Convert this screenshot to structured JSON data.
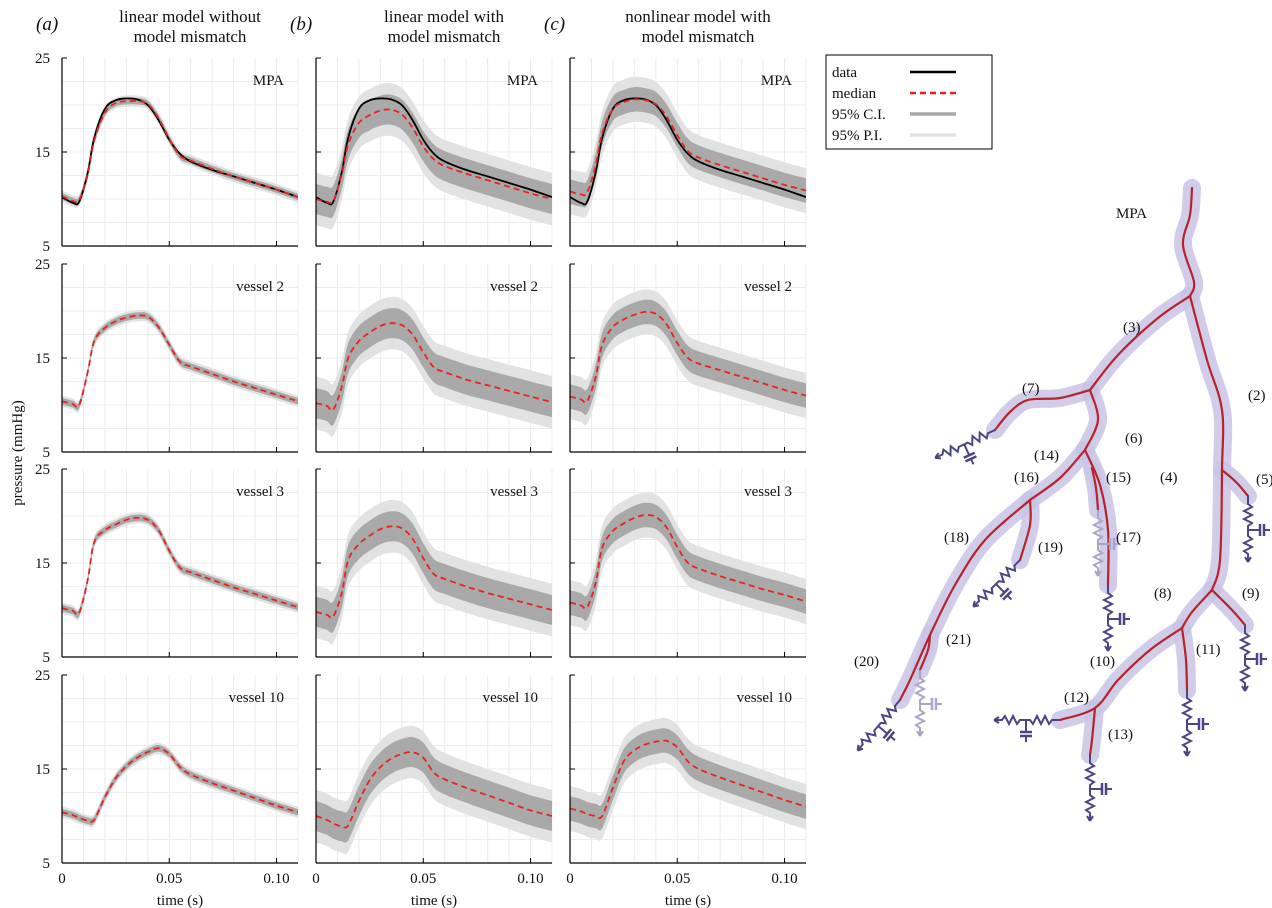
{
  "colors": {
    "data_line": "#000000",
    "median_line": "#e8231d",
    "ci_band": "#a9a9a9",
    "pi_band": "#e2e2e2",
    "vessel_centerline": "#b5232c",
    "vessel_tube": "#c9c4e4",
    "rcr_element": "#4a4585",
    "rcr_faded": "#a9a5c8"
  },
  "columns": [
    {
      "letter": "(a)",
      "title_line1": "linear model without",
      "title_line2": "model mismatch"
    },
    {
      "letter": "(b)",
      "title_line1": "linear model with",
      "title_line2": "model mismatch"
    },
    {
      "letter": "(c)",
      "title_line1": "nonlinear model with",
      "title_line2": "model mismatch"
    }
  ],
  "y_axis_label": "pressure (mmHg)",
  "x_axis_label": "time (s)",
  "legend": {
    "data": "data",
    "median": "median",
    "ci": "95% C.I.",
    "pi": "95% P.I."
  },
  "tree": {
    "root_label": "MPA",
    "vessel_labels": [
      "(2)",
      "(3)",
      "(4)",
      "(5)",
      "(6)",
      "(7)",
      "(8)",
      "(9)",
      "(10)",
      "(11)",
      "(12)",
      "(13)",
      "(14)",
      "(15)",
      "(16)",
      "(17)",
      "(18)",
      "(19)",
      "(20)",
      "(21)"
    ]
  },
  "chart_data": [
    {
      "type": "line",
      "x_label": "time (s)",
      "y_label": "pressure (mmHg)",
      "xlim": [
        0,
        0.11
      ],
      "ylim": [
        5,
        25
      ],
      "xticks": [
        "0",
        "0.05",
        "0.10"
      ],
      "yticks": [
        "5",
        "15",
        "25"
      ],
      "grid": true,
      "legend": "right",
      "x": [
        0,
        0.005,
        0.008,
        0.012,
        0.015,
        0.02,
        0.025,
        0.03,
        0.035,
        0.04,
        0.045,
        0.05,
        0.055,
        0.06,
        0.07,
        0.08,
        0.09,
        0.1,
        0.11
      ],
      "rows": [
        {
          "vessel": "MPA",
          "series": [
            {
              "name": "data",
              "values": [
                10.2,
                9.6,
                9.7,
                12.8,
                16.5,
                19.6,
                20.5,
                20.7,
                20.6,
                20.0,
                18.4,
                16.3,
                14.8,
                14.0,
                13.1,
                12.4,
                11.7,
                11.0,
                10.2
              ]
            },
            {
              "name": "median",
              "panel": "a",
              "values": [
                10.3,
                9.8,
                9.9,
                12.6,
                16.2,
                19.2,
                20.2,
                20.4,
                20.4,
                20.1,
                18.6,
                16.4,
                14.6,
                14.1,
                13.2,
                12.4,
                11.7,
                11.0,
                10.2
              ]
            },
            {
              "name": "median",
              "panel": "b",
              "values": [
                10.0,
                9.7,
                9.8,
                12.6,
                15.8,
                18.1,
                18.9,
                19.4,
                19.5,
                19.0,
                17.6,
                15.6,
                14.2,
                13.5,
                12.7,
                12.0,
                11.3,
                10.6,
                10.0
              ]
            },
            {
              "name": "median",
              "panel": "c",
              "values": [
                10.8,
                10.5,
                10.7,
                13.6,
                17.0,
                19.6,
                20.3,
                20.6,
                20.5,
                20.1,
                18.8,
                16.8,
                15.1,
                14.4,
                13.6,
                12.9,
                12.2,
                11.5,
                10.9
              ]
            }
          ]
        },
        {
          "vessel": "vessel 2",
          "series": [
            {
              "name": "median",
              "panel": "a",
              "values": [
                10.4,
                10.1,
                10.0,
                13.5,
                16.8,
                18.2,
                18.9,
                19.3,
                19.5,
                19.4,
                18.3,
                16.4,
                14.6,
                14.1,
                13.3,
                12.5,
                11.8,
                11.1,
                10.4
              ]
            },
            {
              "name": "median",
              "panel": "b",
              "values": [
                10.2,
                9.9,
                9.5,
                11.9,
                15.0,
                16.8,
                17.7,
                18.4,
                18.7,
                18.5,
                17.5,
                15.6,
                14.0,
                13.5,
                12.7,
                12.1,
                11.5,
                10.9,
                10.3
              ]
            },
            {
              "name": "median",
              "panel": "c",
              "values": [
                10.9,
                10.6,
                10.4,
                13.0,
                16.4,
                18.3,
                19.1,
                19.6,
                19.9,
                19.7,
                18.6,
                16.6,
                15.0,
                14.4,
                13.7,
                13.0,
                12.3,
                11.6,
                11.0
              ]
            }
          ]
        },
        {
          "vessel": "vessel 3",
          "series": [
            {
              "name": "median",
              "panel": "a",
              "values": [
                10.2,
                9.9,
                9.7,
                13.2,
                17.2,
                18.5,
                19.1,
                19.6,
                19.8,
                19.6,
                18.5,
                16.3,
                14.5,
                14.0,
                13.2,
                12.4,
                11.7,
                11.0,
                10.3
              ]
            },
            {
              "name": "median",
              "panel": "b",
              "values": [
                9.8,
                9.5,
                9.3,
                11.8,
                15.3,
                17.0,
                17.9,
                18.6,
                18.9,
                18.7,
                17.6,
                15.5,
                13.8,
                13.3,
                12.5,
                11.8,
                11.2,
                10.6,
                10.0
              ]
            },
            {
              "name": "median",
              "panel": "c",
              "values": [
                10.8,
                10.5,
                10.3,
                12.9,
                16.6,
                18.4,
                19.2,
                19.8,
                20.1,
                19.9,
                18.8,
                16.7,
                15.0,
                14.4,
                13.6,
                12.9,
                12.2,
                11.6,
                10.9
              ]
            }
          ]
        },
        {
          "vessel": "vessel 10",
          "series": [
            {
              "name": "median",
              "panel": "a",
              "values": [
                10.4,
                10.1,
                9.8,
                9.5,
                9.6,
                12.0,
                14.0,
                15.3,
                16.2,
                16.8,
                17.2,
                16.6,
                15.2,
                14.4,
                13.5,
                12.7,
                11.9,
                11.1,
                10.4
              ]
            },
            {
              "name": "median",
              "panel": "b",
              "values": [
                10.0,
                9.6,
                9.2,
                8.9,
                9.0,
                11.6,
                13.8,
                15.2,
                16.1,
                16.6,
                16.8,
                16.2,
                14.6,
                13.9,
                13.0,
                12.2,
                11.4,
                10.6,
                10.0
              ]
            },
            {
              "name": "median",
              "panel": "c",
              "values": [
                10.8,
                10.5,
                10.2,
                10.0,
                10.0,
                13.0,
                15.8,
                17.0,
                17.6,
                17.9,
                18.0,
                17.3,
                15.8,
                15.0,
                14.1,
                13.3,
                12.5,
                11.7,
                11.0
              ]
            }
          ]
        }
      ],
      "ci_halfwidth": {
        "a": 0.35,
        "b": 1.6,
        "c": 1.3
      },
      "pi_halfwidth": {
        "a": 0.6,
        "b": 2.8,
        "c": 2.4
      }
    }
  ]
}
